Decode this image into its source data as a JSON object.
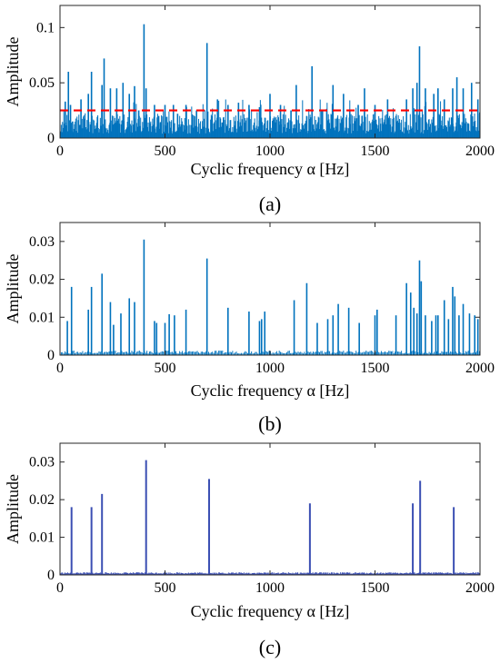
{
  "chart_data": [
    {
      "id": "a",
      "type": "bar",
      "panel_label": "(a)",
      "xlabel": "Cyclic frequency α [Hz]",
      "ylabel": "Amplitude",
      "xlim": [
        0,
        2000
      ],
      "ylim": [
        0,
        0.12
      ],
      "xticks": [
        0,
        500,
        1000,
        1500,
        2000
      ],
      "yticks": [
        0,
        0.05,
        0.1
      ],
      "ytick_labels": [
        "0",
        "0.05",
        "0.1"
      ],
      "threshold": 0.025,
      "colors": {
        "series": "#0072BD",
        "threshold": "#FF0000"
      },
      "peaks": {
        "x": [
          25,
          40,
          50,
          60,
          100,
          135,
          150,
          200,
          210,
          240,
          270,
          300,
          330,
          355,
          375,
          400,
          410,
          450,
          470,
          500,
          540,
          560,
          600,
          650,
          700,
          750,
          800,
          850,
          900,
          950,
          1000,
          1050,
          1100,
          1125,
          1175,
          1200,
          1250,
          1300,
          1350,
          1380,
          1420,
          1450,
          1500,
          1560,
          1600,
          1650,
          1680,
          1700,
          1712,
          1740,
          1780,
          1800,
          1830,
          1870,
          1890,
          1920,
          1960,
          1990
        ],
        "y": [
          0.033,
          0.06,
          0.03,
          0.015,
          0.035,
          0.04,
          0.06,
          0.048,
          0.072,
          0.045,
          0.045,
          0.05,
          0.04,
          0.047,
          0.025,
          0.103,
          0.045,
          0.03,
          0.02,
          0.03,
          0.03,
          0.022,
          0.03,
          0.025,
          0.086,
          0.035,
          0.03,
          0.032,
          0.03,
          0.028,
          0.04,
          0.03,
          0.025,
          0.048,
          0.02,
          0.065,
          0.025,
          0.048,
          0.04,
          0.025,
          0.03,
          0.045,
          0.03,
          0.035,
          0.02,
          0.035,
          0.045,
          0.05,
          0.083,
          0.045,
          0.04,
          0.045,
          0.035,
          0.045,
          0.055,
          0.045,
          0.05,
          0.035
        ]
      }
    },
    {
      "id": "b",
      "type": "bar",
      "panel_label": "(b)",
      "xlabel": "Cyclic frequency α [Hz]",
      "ylabel": "Amplitude",
      "xlim": [
        0,
        2000
      ],
      "ylim": [
        0,
        0.035
      ],
      "xticks": [
        0,
        500,
        1000,
        1500,
        2000
      ],
      "yticks": [
        0,
        0.01,
        0.02,
        0.03
      ],
      "ytick_labels": [
        "0",
        "0.01",
        "0.02",
        "0.03"
      ],
      "colors": {
        "series": "#0072BD"
      },
      "peaks": {
        "x": [
          35,
          55,
          135,
          150,
          200,
          240,
          255,
          290,
          330,
          355,
          400,
          450,
          460,
          500,
          520,
          545,
          600,
          700,
          800,
          900,
          950,
          960,
          975,
          1115,
          1175,
          1225,
          1275,
          1300,
          1325,
          1375,
          1425,
          1500,
          1510,
          1600,
          1650,
          1670,
          1685,
          1700,
          1712,
          1720,
          1740,
          1770,
          1790,
          1800,
          1830,
          1850,
          1870,
          1880,
          1900,
          1920,
          1950,
          1975,
          1990
        ],
        "y": [
          0.009,
          0.018,
          0.012,
          0.018,
          0.0215,
          0.014,
          0.008,
          0.011,
          0.015,
          0.014,
          0.0305,
          0.009,
          0.0085,
          0.0085,
          0.0108,
          0.0105,
          0.012,
          0.0255,
          0.0125,
          0.0115,
          0.009,
          0.0095,
          0.0115,
          0.0145,
          0.019,
          0.0085,
          0.0095,
          0.0105,
          0.0135,
          0.0125,
          0.0085,
          0.0105,
          0.012,
          0.0105,
          0.019,
          0.0165,
          0.0125,
          0.011,
          0.025,
          0.0195,
          0.0105,
          0.009,
          0.0105,
          0.0105,
          0.0145,
          0.0095,
          0.018,
          0.0155,
          0.0105,
          0.0135,
          0.011,
          0.0105,
          0.0095
        ]
      }
    },
    {
      "id": "c",
      "type": "bar",
      "panel_label": "(c)",
      "xlabel": "Cyclic frequency α [Hz]",
      "ylabel": "Amplitude",
      "xlim": [
        0,
        2000
      ],
      "ylim": [
        0,
        0.035
      ],
      "xticks": [
        0,
        500,
        1000,
        1500,
        2000
      ],
      "yticks": [
        0,
        0.01,
        0.02,
        0.03
      ],
      "ytick_labels": [
        "0",
        "0.01",
        "0.02",
        "0.03"
      ],
      "colors": {
        "series": "#3B4FB3"
      },
      "peaks": {
        "x": [
          55,
          150,
          200,
          410,
          710,
          1190,
          1680,
          1715,
          1875
        ],
        "y": [
          0.018,
          0.018,
          0.0215,
          0.0305,
          0.0255,
          0.019,
          0.019,
          0.025,
          0.018
        ]
      }
    }
  ]
}
